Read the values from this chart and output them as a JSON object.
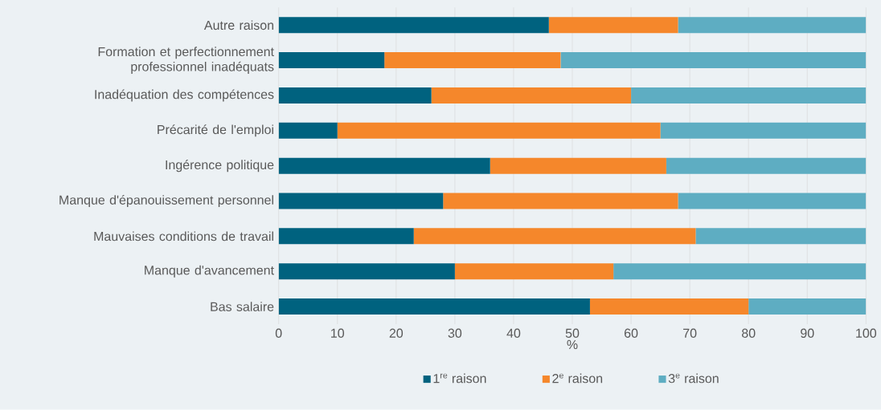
{
  "chart_data": {
    "type": "bar",
    "orientation": "horizontal",
    "stacked": true,
    "xlabel": "%",
    "categories": [
      "Autre raison",
      "Formation et perfectionnement professionnel inadéquats",
      "Inadéquation des compétences",
      "Précarité de l'emploi",
      "Ingérence politique",
      "Manque d'épanouissement personnel",
      "Mauvaises conditions de travail",
      "Manque d'avancement",
      "Bas salaire"
    ],
    "series": [
      {
        "name": "1$^{re}$ raison",
        "color": "#00627f",
        "values": [
          46,
          18,
          26,
          10,
          36,
          28,
          23,
          30,
          53
        ]
      },
      {
        "name": "2$^{e}$ raison",
        "color": "#f5872b",
        "values": [
          22,
          30,
          34,
          55,
          30,
          40,
          48,
          27,
          27
        ]
      },
      {
        "name": "3$^{e}$ raison",
        "color": "#5eadc2",
        "values": [
          32,
          52,
          40,
          35,
          34,
          32,
          29,
          43,
          20
        ]
      }
    ],
    "xlim": [
      0,
      100
    ],
    "xticks": [
      0,
      10,
      20,
      30,
      40,
      50,
      60,
      70,
      80,
      90,
      100
    ],
    "grid": "x",
    "legend": "bottom"
  }
}
